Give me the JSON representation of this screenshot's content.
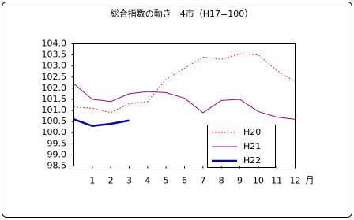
{
  "chart_data": {
    "type": "line",
    "title": "総合指数の動き　4市（H17=100）",
    "x_label": "月",
    "x": [
      0,
      1,
      2,
      3,
      4,
      5,
      6,
      7,
      8,
      9,
      10,
      11,
      12
    ],
    "xlim": [
      0,
      12
    ],
    "xticks": [
      1,
      2,
      3,
      4,
      5,
      6,
      7,
      8,
      9,
      10,
      11,
      12
    ],
    "ylim": [
      98.5,
      104.0
    ],
    "yticks": [
      {
        "value": 98.5,
        "label": "98.5"
      },
      {
        "value": 99.0,
        "label": "99.0"
      },
      {
        "value": 99.5,
        "label": "99.5"
      },
      {
        "value": 100.0,
        "label": "100.0"
      },
      {
        "value": 100.5,
        "label": "100.5"
      },
      {
        "value": 101.0,
        "label": "101.0"
      },
      {
        "value": 101.5,
        "label": "101.5"
      },
      {
        "value": 102.0,
        "label": "102.0"
      },
      {
        "value": 102.5,
        "label": "102.5"
      },
      {
        "value": 103.0,
        "label": "103.0"
      },
      {
        "value": 103.5,
        "label": "103.5"
      },
      {
        "value": 104.0,
        "label": "104.0"
      }
    ],
    "grid": false,
    "series": [
      {
        "name": "H20",
        "color": "#ff0000",
        "style": "dotted",
        "values": [
          101.15,
          101.1,
          100.9,
          101.3,
          101.4,
          102.4,
          102.9,
          103.4,
          103.3,
          103.55,
          103.5,
          102.8,
          102.3
        ]
      },
      {
        "name": "H21",
        "color": "#990099",
        "style": "solid",
        "values": [
          102.2,
          101.5,
          101.4,
          101.75,
          101.85,
          101.8,
          101.55,
          100.9,
          101.45,
          101.5,
          100.95,
          100.7,
          100.6
        ]
      },
      {
        "name": "H22",
        "color": "#0000cc",
        "style": "thick",
        "values": [
          100.6,
          100.3,
          100.4,
          100.55,
          null,
          null,
          null,
          null,
          null,
          null,
          null,
          null,
          null
        ]
      }
    ]
  }
}
